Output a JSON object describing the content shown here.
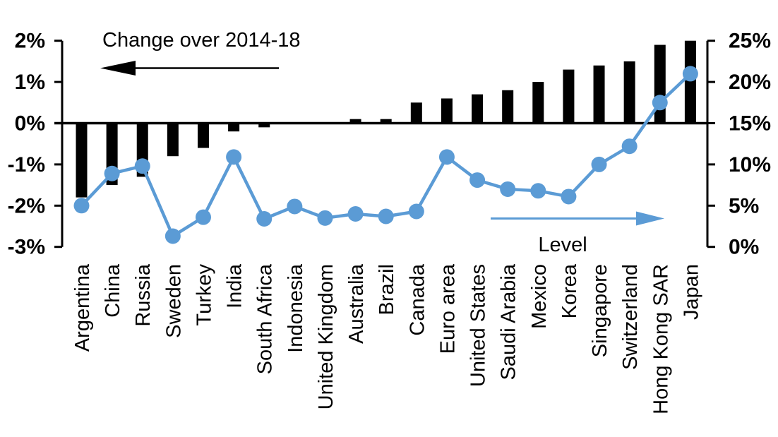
{
  "colors": {
    "bar": "#000000",
    "line": "#5B9BD5",
    "axis": "#000000",
    "text": "#000000",
    "background": "#FFFFFF"
  },
  "chart_data": {
    "type": "bar",
    "subtype": "combo-bar-line-dual-axis",
    "title": "",
    "grid": false,
    "legend_position": "in-plot-arrow-annotations",
    "categories": [
      "Argentina",
      "China",
      "Russia",
      "Sweden",
      "Turkey",
      "India",
      "South Africa",
      "Indonesia",
      "United Kingdom",
      "Australia",
      "Brazil",
      "Canada",
      "Euro area",
      "United States",
      "Saudi Arabia",
      "Mexico",
      "Korea",
      "Singapore",
      "Switzerland",
      "Hong Kong SAR",
      "Japan"
    ],
    "series": [
      {
        "name": "Change over 2014-18",
        "type": "bar",
        "axis": "left",
        "values": [
          -1.8,
          -1.5,
          -1.3,
          -0.8,
          -0.6,
          -0.2,
          -0.1,
          0.0,
          0.0,
          0.1,
          0.1,
          0.5,
          0.6,
          0.7,
          0.8,
          1.0,
          1.3,
          1.4,
          1.5,
          1.9,
          2.0
        ]
      },
      {
        "name": "Level",
        "type": "line",
        "axis": "right",
        "values": [
          5.0,
          8.9,
          9.8,
          1.3,
          3.6,
          10.9,
          3.4,
          4.9,
          3.5,
          4.0,
          3.7,
          4.3,
          10.9,
          8.1,
          7.0,
          6.8,
          6.1,
          10.0,
          12.2,
          17.5,
          21.0
        ]
      }
    ],
    "left_axis": {
      "tick_labels": [
        "2%",
        "1%",
        "0%",
        "-1%",
        "-2%",
        "-3%"
      ],
      "tick_values": [
        2,
        1,
        0,
        -1,
        -2,
        -3
      ],
      "range": [
        -3,
        2
      ]
    },
    "right_axis": {
      "tick_labels": [
        "25%",
        "20%",
        "15%",
        "10%",
        "5%",
        "0%"
      ],
      "tick_values": [
        25,
        20,
        15,
        10,
        5,
        0
      ],
      "range": [
        0,
        25
      ]
    },
    "annotations": {
      "bar_series_label": "Change over 2014-18",
      "bar_series_arrow_direction": "left",
      "line_series_label": "Level",
      "line_series_arrow_direction": "right"
    }
  }
}
